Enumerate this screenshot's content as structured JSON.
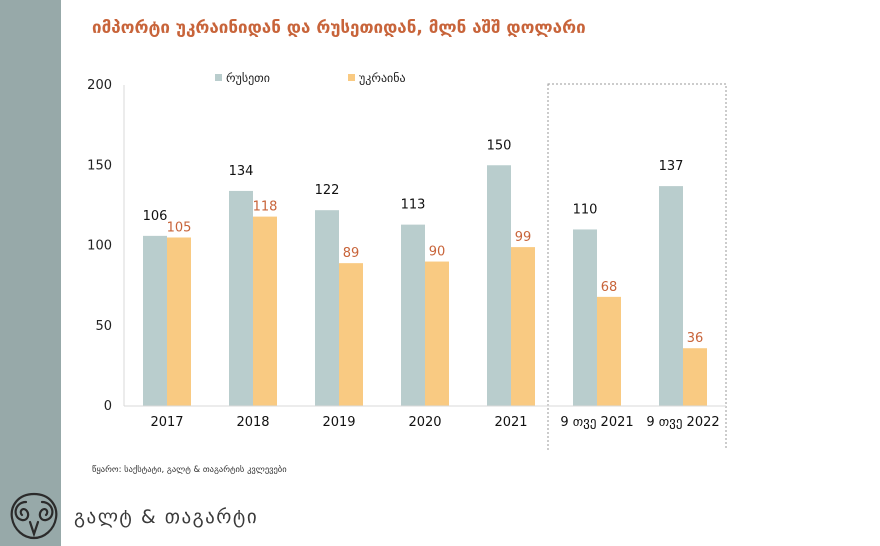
{
  "title": "იმპორტი უკრაინიდან და რუსეთიდან, მლნ აშშ დოლარი",
  "source": "წყარო: საქსტატი, გალტ & თაგარტის კვლევები",
  "brand": "გალტ & თაგარტი",
  "colors": {
    "russia": "#b9cdcd",
    "ukraine": "#f9ca82",
    "ukraine_label": "#c8643a",
    "title": "#c8643a",
    "sidebar": "#97a9a9"
  },
  "chart_data": {
    "type": "bar",
    "categories": [
      "2017",
      "2018",
      "2019",
      "2020",
      "2021",
      "9 თვე 2021",
      "9 თვე 2022"
    ],
    "series": [
      {
        "name": "რუსეთი",
        "values": [
          106,
          134,
          122,
          113,
          150,
          110,
          137
        ]
      },
      {
        "name": "უკრაინა",
        "values": [
          105,
          118,
          89,
          90,
          99,
          68,
          36
        ]
      }
    ],
    "y_ticks": [
      0,
      50,
      100,
      150,
      200
    ],
    "ylim": [
      0,
      200
    ],
    "grid": false,
    "legend_position": "top-left",
    "highlighted_categories": [
      "9 თვე 2021",
      "9 თვე 2022"
    ]
  }
}
